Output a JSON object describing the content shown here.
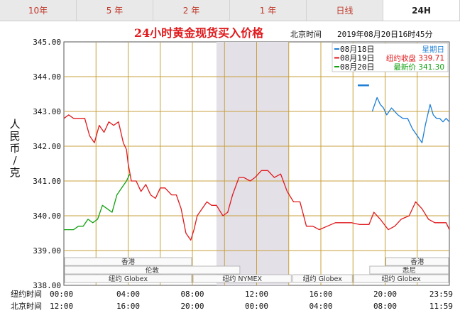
{
  "tabs": [
    {
      "label": "10年",
      "active": false
    },
    {
      "label": "5 年",
      "active": false
    },
    {
      "label": "2 年",
      "active": false
    },
    {
      "label": "1 年",
      "active": false
    },
    {
      "label": "日线",
      "active": false
    },
    {
      "label": "24H",
      "active": true
    }
  ],
  "header": {
    "title": "24小时黄金现货买入价格",
    "time_label": "北京时间",
    "time_value": "2019年08月20日16时45分"
  },
  "legend": [
    {
      "date": "08月18日",
      "text": "星期日",
      "color": "#1e7fd6"
    },
    {
      "date": "08月19日",
      "text": "纽约收盘 339.71",
      "color": "#e0191c"
    },
    {
      "date": "08月20日",
      "text": "最新价 341.30",
      "color": "#11a010"
    }
  ],
  "markets": [
    "香港",
    "伦敦",
    "纽约 Globex",
    "纽约 NYMEX",
    "纽约 Globex",
    "香港",
    "悉尼"
  ],
  "time_rows": {
    "ny_label": "纽约时间",
    "bj_label": "北京时间",
    "ny_ticks": [
      "00:00",
      "04:00",
      "08:00",
      "12:00",
      "16:00",
      "20:00",
      "23:59"
    ],
    "bj_ticks": [
      "12:00",
      "16:00",
      "20:00",
      "00:00",
      "04:00",
      "08:00",
      "11:59"
    ]
  },
  "chart_data": {
    "type": "line",
    "title": "24小时黄金现货买入价格",
    "ylabel": "人民币/克",
    "xlabel": "",
    "ylim": [
      338.0,
      345.0
    ],
    "xlim": [
      0,
      24
    ],
    "y_ticks": [
      "345.00",
      "344.00",
      "343.00",
      "342.00",
      "341.00",
      "340.00",
      "339.00",
      "338.00"
    ],
    "grid": true,
    "legend_position": "top-right",
    "colors": {
      "grid": "#c8a03c",
      "axis": "#555555",
      "shade": "#e4e0e8"
    },
    "shaded_range": [
      9.5,
      14.0
    ],
    "series": [
      {
        "name": "08月18日",
        "color": "#1e7fd6",
        "x": [
          19.2,
          19.5,
          19.7,
          19.9,
          20.1,
          20.4,
          20.8,
          21.1,
          21.4,
          21.7,
          22.0,
          22.3,
          22.5,
          22.8,
          23.0,
          23.2,
          23.4,
          23.6,
          23.8,
          24.0
        ],
        "y": [
          343.0,
          343.4,
          343.2,
          343.1,
          342.9,
          343.1,
          342.9,
          342.8,
          342.8,
          342.5,
          342.3,
          342.1,
          342.6,
          343.2,
          342.9,
          342.8,
          342.8,
          342.7,
          342.8,
          342.7
        ],
        "start_marker": {
          "x": [
            18.3,
            19.0
          ],
          "y": 343.75
        }
      },
      {
        "name": "08月19日",
        "color": "#e0191c",
        "x": [
          0.0,
          0.3,
          0.6,
          1.0,
          1.3,
          1.6,
          1.9,
          2.2,
          2.5,
          2.8,
          3.1,
          3.4,
          3.7,
          3.9,
          4.0,
          4.2,
          4.5,
          4.8,
          5.1,
          5.4,
          5.7,
          6.0,
          6.3,
          6.7,
          7.0,
          7.3,
          7.6,
          7.9,
          8.1,
          8.3,
          8.6,
          8.9,
          9.2,
          9.5,
          9.9,
          10.2,
          10.5,
          10.9,
          11.2,
          11.6,
          11.9,
          12.3,
          12.7,
          13.1,
          13.5,
          13.9,
          14.3,
          14.7,
          15.1,
          15.5,
          15.9,
          16.4,
          16.9,
          17.4,
          17.9,
          18.4,
          19.0,
          19.3,
          19.7,
          20.2,
          20.6,
          21.0,
          21.5,
          21.9,
          22.3,
          22.7,
          23.1,
          23.5,
          23.8,
          24.0
        ],
        "y": [
          342.8,
          342.9,
          342.8,
          342.8,
          342.8,
          342.3,
          342.1,
          342.6,
          342.4,
          342.7,
          342.6,
          342.7,
          342.1,
          341.9,
          341.5,
          341.0,
          341.0,
          340.7,
          340.9,
          340.6,
          340.5,
          340.8,
          340.8,
          340.6,
          340.6,
          340.2,
          339.5,
          339.3,
          339.6,
          340.0,
          340.2,
          340.4,
          340.3,
          340.3,
          340.0,
          340.1,
          340.6,
          341.1,
          341.1,
          341.0,
          341.1,
          341.3,
          341.3,
          341.1,
          341.2,
          340.7,
          340.4,
          340.4,
          339.7,
          339.7,
          339.6,
          339.7,
          339.8,
          339.8,
          339.8,
          339.75,
          339.75,
          340.1,
          339.9,
          339.6,
          339.7,
          339.9,
          340.0,
          340.4,
          340.2,
          339.9,
          339.8,
          339.8,
          339.8,
          339.6
        ]
      },
      {
        "name": "08月20日",
        "color": "#11a010",
        "x": [
          0.0,
          0.3,
          0.6,
          0.9,
          1.2,
          1.5,
          1.8,
          2.1,
          2.4,
          2.7,
          3.0,
          3.3,
          3.6,
          3.9,
          4.1
        ],
        "y": [
          339.6,
          339.6,
          339.6,
          339.7,
          339.7,
          339.9,
          339.8,
          339.9,
          340.3,
          340.2,
          340.1,
          340.6,
          340.8,
          341.0,
          341.2
        ]
      }
    ]
  }
}
